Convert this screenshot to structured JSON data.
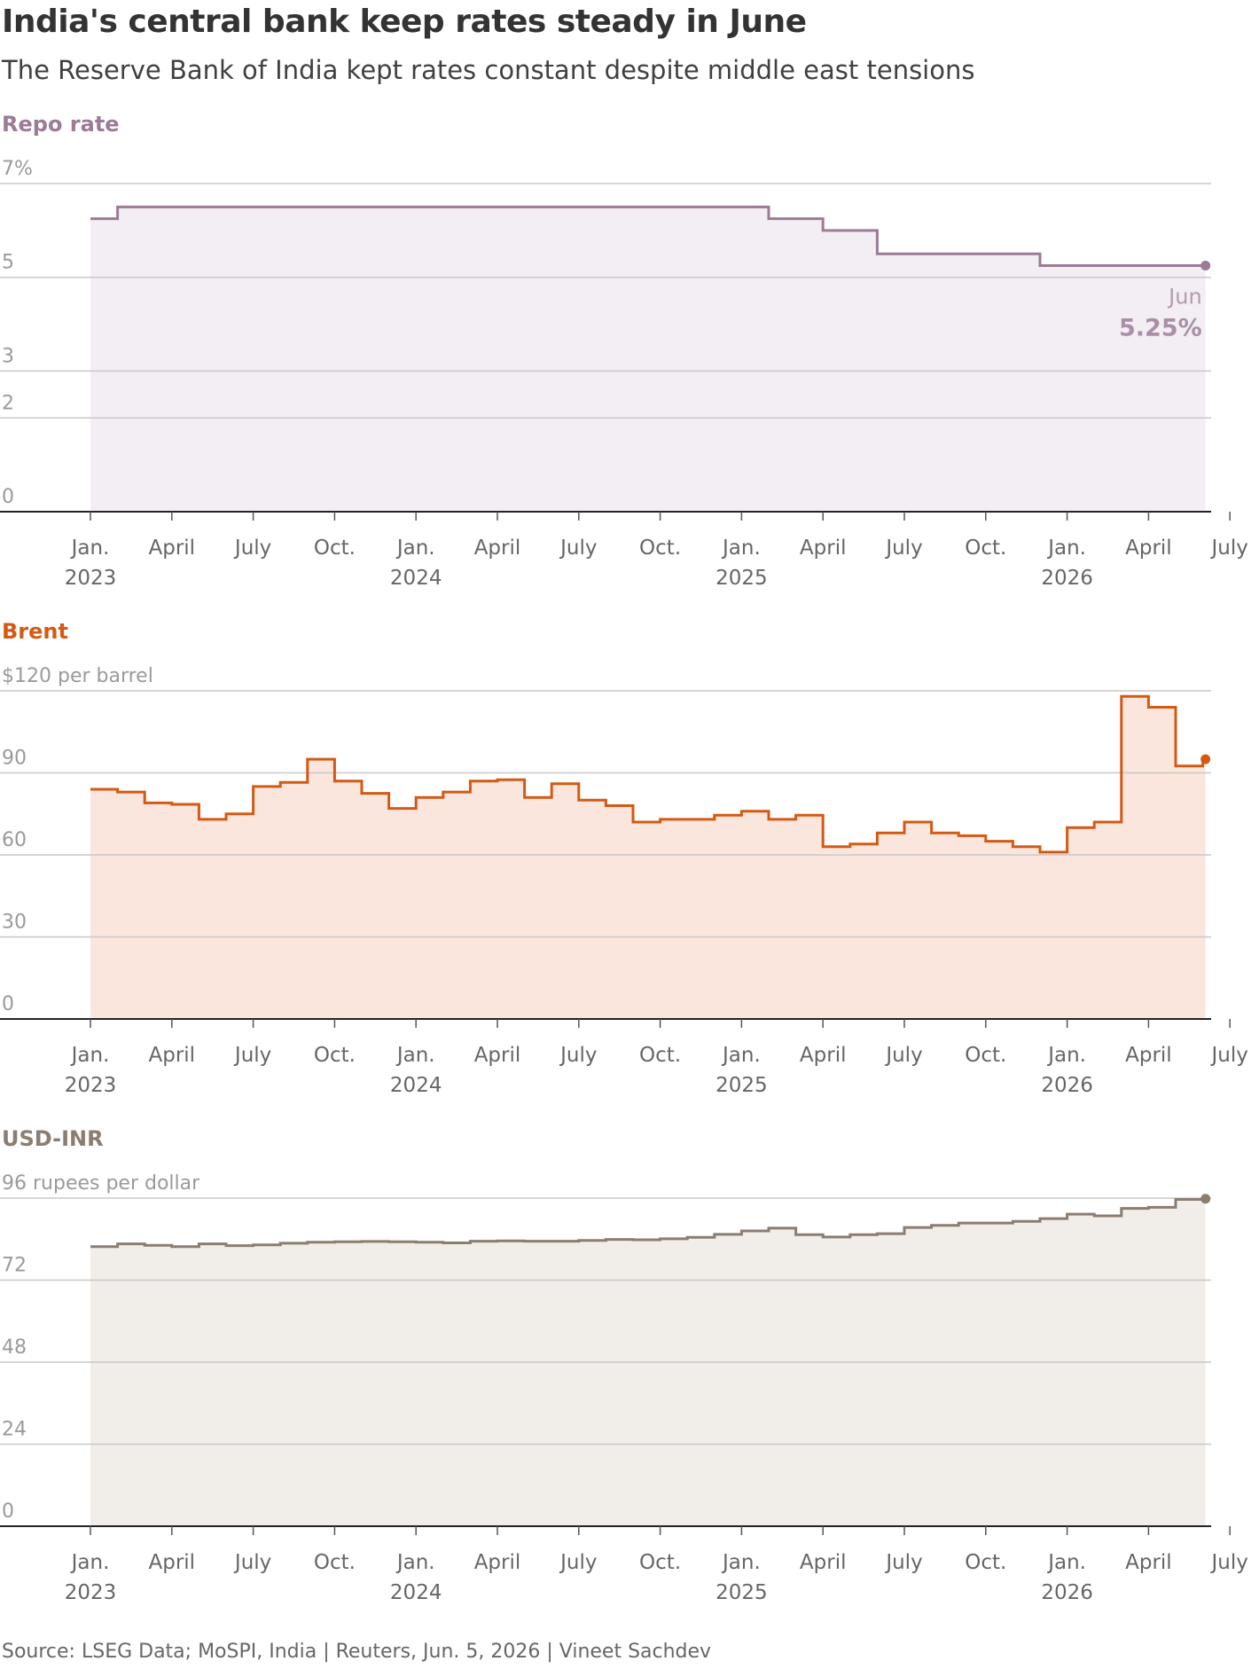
{
  "header": {
    "title": "India's central bank keep rates steady in June",
    "subtitle": "The Reserve Bank of India kept rates constant despite middle east tensions"
  },
  "footer": {
    "source": "Source: LSEG Data; MoSPI, India | Reuters, Jun. 5, 2026 | Vineet Sachdev"
  },
  "x_axis": {
    "ticks": [
      {
        "month": 0,
        "line1": "Jan.",
        "line2": "2023"
      },
      {
        "month": 3,
        "line1": "April",
        "line2": ""
      },
      {
        "month": 6,
        "line1": "July",
        "line2": ""
      },
      {
        "month": 9,
        "line1": "Oct.",
        "line2": ""
      },
      {
        "month": 12,
        "line1": "Jan.",
        "line2": "2024"
      },
      {
        "month": 15,
        "line1": "April",
        "line2": ""
      },
      {
        "month": 18,
        "line1": "July",
        "line2": ""
      },
      {
        "month": 21,
        "line1": "Oct.",
        "line2": ""
      },
      {
        "month": 24,
        "line1": "Jan.",
        "line2": "2025"
      },
      {
        "month": 27,
        "line1": "April",
        "line2": ""
      },
      {
        "month": 30,
        "line1": "July",
        "line2": ""
      },
      {
        "month": 33,
        "line1": "Oct.",
        "line2": ""
      },
      {
        "month": 36,
        "line1": "Jan.",
        "line2": "2026"
      },
      {
        "month": 39,
        "line1": "April",
        "line2": ""
      },
      {
        "month": 42,
        "line1": "July",
        "line2": ""
      }
    ]
  },
  "chart_data": [
    {
      "type": "area",
      "title": "Repo rate",
      "color": "#9b7b96",
      "fill": "#f3eef3",
      "ylim": [
        0,
        7
      ],
      "yticks": [
        {
          "value": 7,
          "label": "7%"
        },
        {
          "value": 5,
          "label": "5"
        },
        {
          "value": 3,
          "label": "3"
        },
        {
          "value": 2,
          "label": "2"
        },
        {
          "value": 0,
          "label": "0"
        }
      ],
      "series": [
        {
          "x": [
            "Jan 2023",
            "Feb 2023",
            "Mar 2023",
            "Apr 2023",
            "May 2023",
            "Jun 2023",
            "Jul 2023",
            "Aug 2023",
            "Sep 2023",
            "Oct 2023",
            "Nov 2023",
            "Dec 2023",
            "Jan 2024",
            "Feb 2024",
            "Mar 2024",
            "Apr 2024",
            "May 2024",
            "Jun 2024",
            "Jul 2024",
            "Aug 2024",
            "Sep 2024",
            "Oct 2024",
            "Nov 2024",
            "Dec 2024",
            "Jan 2025",
            "Feb 2025",
            "Mar 2025",
            "Apr 2025",
            "May 2025",
            "Jun 2025",
            "Jul 2025",
            "Aug 2025",
            "Sep 2025",
            "Oct 2025",
            "Nov 2025",
            "Dec 2025",
            "Jan 2026",
            "Feb 2026",
            "Mar 2026",
            "Apr 2026",
            "May 2026",
            "Jun 2026"
          ],
          "values": [
            6.25,
            6.5,
            6.5,
            6.5,
            6.5,
            6.5,
            6.5,
            6.5,
            6.5,
            6.5,
            6.5,
            6.5,
            6.5,
            6.5,
            6.5,
            6.5,
            6.5,
            6.5,
            6.5,
            6.5,
            6.5,
            6.5,
            6.5,
            6.5,
            6.5,
            6.25,
            6.25,
            6.0,
            6.0,
            5.5,
            5.5,
            5.5,
            5.5,
            5.5,
            5.5,
            5.25,
            5.25,
            5.25,
            5.25,
            5.25,
            5.25,
            5.25
          ]
        }
      ],
      "annotation": {
        "label": "Jun",
        "value": "5.25%"
      }
    },
    {
      "type": "area",
      "title": "Brent",
      "color": "#d35a14",
      "fill": "#fae6dc",
      "ylim": [
        0,
        120
      ],
      "yticks": [
        {
          "value": 120,
          "label": "$120 per barrel"
        },
        {
          "value": 90,
          "label": "90"
        },
        {
          "value": 60,
          "label": "60"
        },
        {
          "value": 30,
          "label": "30"
        },
        {
          "value": 0,
          "label": "0"
        }
      ],
      "series": [
        {
          "x": [
            "Jan 2023",
            "Feb 2023",
            "Mar 2023",
            "Apr 2023",
            "May 2023",
            "Jun 2023",
            "Jul 2023",
            "Aug 2023",
            "Sep 2023",
            "Oct 2023",
            "Nov 2023",
            "Dec 2023",
            "Jan 2024",
            "Feb 2024",
            "Mar 2024",
            "Apr 2024",
            "May 2024",
            "Jun 2024",
            "Jul 2024",
            "Aug 2024",
            "Sep 2024",
            "Oct 2024",
            "Nov 2024",
            "Dec 2024",
            "Jan 2025",
            "Feb 2025",
            "Mar 2025",
            "Apr 2025",
            "May 2025",
            "Jun 2025",
            "Jul 2025",
            "Aug 2025",
            "Sep 2025",
            "Oct 2025",
            "Nov 2025",
            "Dec 2025",
            "Jan 2026",
            "Feb 2026",
            "Mar 2026",
            "Apr 2026",
            "May 2026",
            "Jun 2026"
          ],
          "values": [
            84,
            83,
            79,
            78.5,
            73,
            75,
            85,
            86.5,
            95,
            87,
            82.5,
            77,
            81,
            83,
            87,
            87.5,
            81,
            86,
            80,
            78,
            72,
            73,
            73,
            74.5,
            76,
            73,
            74.5,
            63,
            64,
            68,
            72,
            68,
            67,
            65,
            63,
            61,
            70,
            72,
            118,
            114,
            92.5,
            95
          ]
        }
      ]
    },
    {
      "type": "area",
      "title": "USD-INR",
      "color": "#8b7d70",
      "fill": "#f1eeea",
      "ylim": [
        0,
        96
      ],
      "yticks": [
        {
          "value": 96,
          "label": "96 rupees per dollar"
        },
        {
          "value": 72,
          "label": "72"
        },
        {
          "value": 48,
          "label": "48"
        },
        {
          "value": 24,
          "label": "24"
        },
        {
          "value": 0,
          "label": "0"
        }
      ],
      "series": [
        {
          "x": [
            "Jan 2023",
            "Feb 2023",
            "Mar 2023",
            "Apr 2023",
            "May 2023",
            "Jun 2023",
            "Jul 2023",
            "Aug 2023",
            "Sep 2023",
            "Oct 2023",
            "Nov 2023",
            "Dec 2023",
            "Jan 2024",
            "Feb 2024",
            "Mar 2024",
            "Apr 2024",
            "May 2024",
            "Jun 2024",
            "Jul 2024",
            "Aug 2024",
            "Sep 2024",
            "Oct 2024",
            "Nov 2024",
            "Dec 2024",
            "Jan 2025",
            "Feb 2025",
            "Mar 2025",
            "Apr 2025",
            "May 2025",
            "Jun 2025",
            "Jul 2025",
            "Aug 2025",
            "Sep 2025",
            "Oct 2025",
            "Nov 2025",
            "Dec 2025",
            "Jan 2026",
            "Feb 2026",
            "Mar 2026",
            "Apr 2026",
            "May 2026",
            "Jun 2026"
          ],
          "values": [
            81.8,
            82.6,
            82.2,
            81.8,
            82.6,
            82.1,
            82.3,
            82.8,
            83.1,
            83.2,
            83.3,
            83.2,
            83.1,
            82.9,
            83.4,
            83.5,
            83.4,
            83.4,
            83.6,
            83.9,
            83.8,
            84.1,
            84.5,
            85.4,
            86.4,
            87.2,
            85.3,
            84.6,
            85.3,
            85.6,
            87.4,
            88.0,
            88.7,
            88.7,
            89.2,
            90.0,
            91.3,
            90.8,
            93.0,
            93.3,
            95.6,
            95.8
          ]
        }
      ],
      "annotation": {
        "label": "",
        "value": ""
      }
    }
  ]
}
